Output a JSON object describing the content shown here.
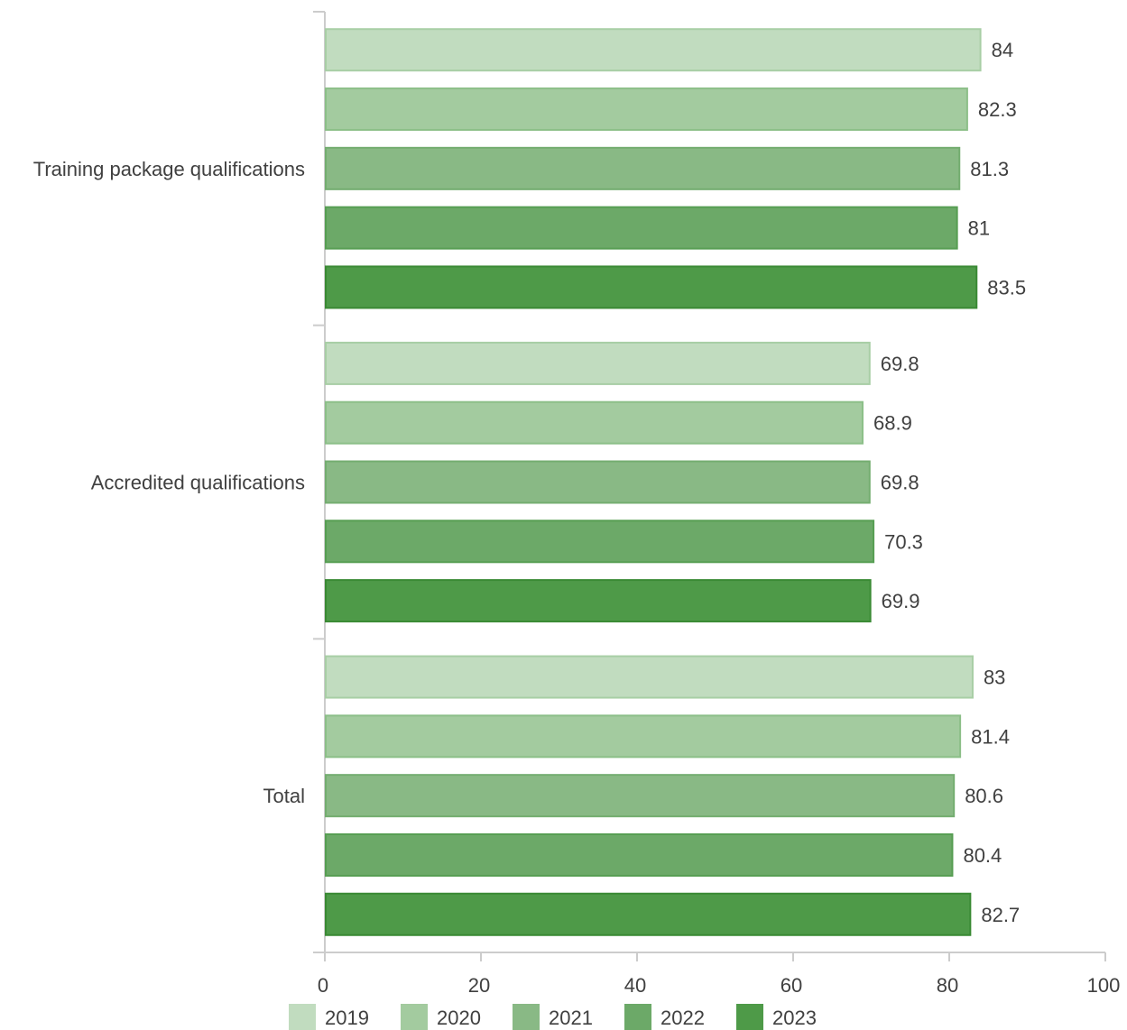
{
  "chart_data": {
    "type": "bar",
    "orientation": "horizontal",
    "categories": [
      "Training package qualifications",
      "Accredited qualifications",
      "Total"
    ],
    "series": [
      {
        "name": "2019",
        "values": [
          84,
          69.8,
          83
        ],
        "color": "#c1dcbf",
        "stroke": "#a8cea5"
      },
      {
        "name": "2020",
        "values": [
          82.3,
          68.9,
          81.4
        ],
        "color": "#a3cb9f",
        "stroke": "#8cbf88"
      },
      {
        "name": "2021",
        "values": [
          81.3,
          69.8,
          80.6
        ],
        "color": "#89b985",
        "stroke": "#74ad70"
      },
      {
        "name": "2022",
        "values": [
          81,
          70.3,
          80.4
        ],
        "color": "#6ca968",
        "stroke": "#579e53"
      },
      {
        "name": "2023",
        "values": [
          83.5,
          69.9,
          82.7
        ],
        "color": "#4e9a48",
        "stroke": "#3a8a34"
      }
    ],
    "xlim": [
      0,
      100
    ],
    "xticks": [
      "0",
      "20",
      "40",
      "60",
      "80",
      "100"
    ],
    "title": "",
    "xlabel": "",
    "ylabel": "",
    "grid": false,
    "legend": "bottom"
  }
}
